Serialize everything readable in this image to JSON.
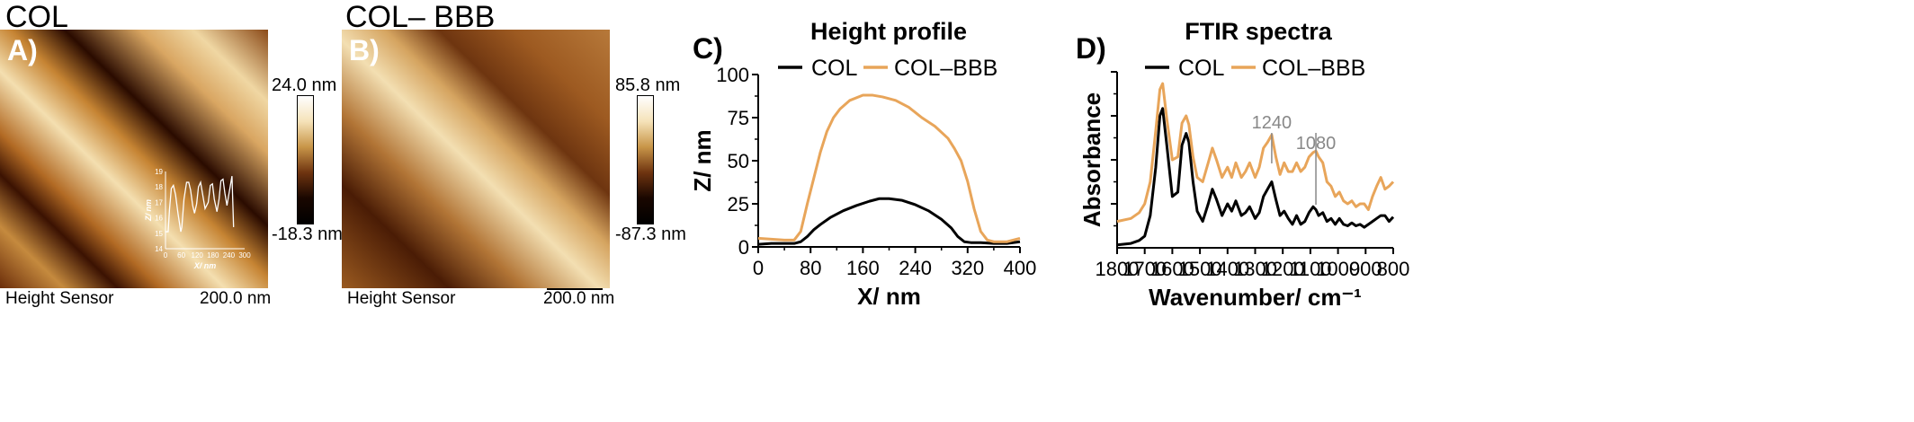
{
  "panels": {
    "a": {
      "title": "COL",
      "letter": "A)",
      "footer_left": "Height Sensor",
      "footer_right": "200.0 nm",
      "colorbar_max": "24.0 nm",
      "colorbar_min": "-18.3 nm"
    },
    "b": {
      "title": "COL– BBB",
      "letter": "B)",
      "footer_left": "Height Sensor",
      "footer_right": "200.0 nm",
      "colorbar_max": "85.8 nm",
      "colorbar_min": "-87.3 nm"
    },
    "c": {
      "letter": "C)"
    },
    "d": {
      "letter": "D)"
    }
  },
  "colors": {
    "col": "#000000",
    "col_bbb": "#E8A55A",
    "annotation": "#888888",
    "inset": "#ffffff"
  },
  "chart_data": [
    {
      "type": "line",
      "title": "",
      "xlabel": "X/ nm",
      "ylabel": "Z/ nm",
      "xlim": [
        0,
        300
      ],
      "ylim": [
        14,
        19
      ],
      "xticks": [
        "0",
        "60",
        "120",
        "180",
        "240",
        "300"
      ],
      "yticks": [
        "14",
        "15",
        "16",
        "17",
        "18",
        "19"
      ],
      "series": [
        {
          "name": "",
          "x": [
            0,
            10,
            15,
            22,
            30,
            38,
            48,
            58,
            62,
            70,
            80,
            88,
            95,
            103,
            110,
            118,
            125,
            133,
            140,
            150,
            162,
            170,
            178,
            185,
            195,
            203,
            210,
            218,
            225,
            233,
            240,
            252,
            258
          ],
          "y": [
            15.1,
            15.1,
            16.5,
            17.9,
            18.1,
            17.5,
            16.2,
            15.1,
            15.4,
            17.2,
            18.3,
            18.3,
            17.8,
            16.8,
            16.3,
            16.9,
            18.0,
            18.3,
            17.6,
            16.6,
            17.0,
            18.1,
            18.2,
            17.2,
            16.4,
            17.2,
            18.4,
            18.5,
            17.6,
            16.8,
            17.5,
            18.7,
            15.4
          ]
        }
      ]
    },
    {
      "type": "line",
      "title": "Height profile",
      "xlabel": "X/ nm",
      "ylabel": "Z/ nm",
      "xlim": [
        0,
        400
      ],
      "ylim": [
        0,
        100
      ],
      "xticks": [
        "0",
        "80",
        "160",
        "240",
        "320",
        "400"
      ],
      "yticks": [
        "0",
        "25",
        "50",
        "75",
        "100"
      ],
      "legend": "top",
      "series": [
        {
          "name": "COL",
          "x": [
            0,
            20,
            40,
            55,
            65,
            75,
            85,
            95,
            110,
            130,
            150,
            170,
            185,
            200,
            220,
            240,
            260,
            280,
            295,
            305,
            315,
            325,
            340,
            360,
            380,
            400
          ],
          "y": [
            1.5,
            2,
            2,
            2,
            3,
            6,
            10,
            13,
            17,
            21,
            24,
            26.5,
            28,
            28,
            27,
            24.5,
            21,
            16,
            11,
            6,
            3,
            2.5,
            2.5,
            2,
            2,
            3
          ]
        },
        {
          "name": "COL–BBB",
          "x": [
            0,
            20,
            40,
            55,
            65,
            75,
            85,
            95,
            105,
            115,
            125,
            140,
            160,
            175,
            190,
            210,
            230,
            250,
            270,
            290,
            300,
            310,
            320,
            330,
            340,
            350,
            360,
            380,
            400
          ],
          "y": [
            5,
            4.5,
            4,
            4,
            9,
            25,
            40,
            55,
            67,
            75,
            80,
            85,
            88,
            88,
            87,
            85,
            81,
            75,
            70,
            63,
            57,
            50,
            38,
            22,
            9,
            4,
            3,
            3,
            5
          ]
        }
      ]
    },
    {
      "type": "line",
      "title": "FTIR spectra",
      "xlabel": "Wavenumber/ cm⁻¹",
      "ylabel": "Absorbance",
      "xlim": [
        1800,
        800
      ],
      "xticks": [
        "1800",
        "1700",
        "1600",
        "1500",
        "1400",
        "1300",
        "1200",
        "1100",
        "1000",
        "900",
        "800"
      ],
      "legend": "top",
      "annotations": [
        {
          "text": "1240",
          "x": 1240
        },
        {
          "text": "1080",
          "x": 1080
        }
      ],
      "series": [
        {
          "name": "COL",
          "x": [
            1800,
            1750,
            1720,
            1700,
            1680,
            1660,
            1645,
            1635,
            1620,
            1600,
            1580,
            1565,
            1550,
            1540,
            1525,
            1510,
            1490,
            1470,
            1455,
            1440,
            1420,
            1400,
            1385,
            1370,
            1350,
            1335,
            1320,
            1300,
            1285,
            1270,
            1255,
            1240,
            1225,
            1210,
            1195,
            1180,
            1165,
            1150,
            1135,
            1120,
            1105,
            1090,
            1080,
            1070,
            1055,
            1040,
            1025,
            1010,
            995,
            980,
            965,
            950,
            935,
            920,
            905,
            890,
            875,
            860,
            845,
            830,
            815,
            800
          ],
          "y": [
            0.02,
            0.03,
            0.05,
            0.08,
            0.22,
            0.55,
            0.9,
            0.95,
            0.7,
            0.35,
            0.38,
            0.7,
            0.78,
            0.72,
            0.45,
            0.25,
            0.18,
            0.3,
            0.4,
            0.33,
            0.22,
            0.3,
            0.25,
            0.32,
            0.22,
            0.24,
            0.28,
            0.2,
            0.24,
            0.35,
            0.4,
            0.45,
            0.33,
            0.22,
            0.25,
            0.2,
            0.16,
            0.22,
            0.16,
            0.18,
            0.24,
            0.28,
            0.26,
            0.22,
            0.24,
            0.18,
            0.2,
            0.16,
            0.2,
            0.16,
            0.15,
            0.17,
            0.15,
            0.16,
            0.14,
            0.16,
            0.18,
            0.2,
            0.22,
            0.22,
            0.18,
            0.21
          ]
        },
        {
          "name": "COL–BBB",
          "x": [
            1800,
            1750,
            1720,
            1700,
            1680,
            1660,
            1645,
            1635,
            1620,
            1600,
            1580,
            1565,
            1550,
            1540,
            1525,
            1510,
            1490,
            1470,
            1455,
            1440,
            1420,
            1400,
            1385,
            1370,
            1350,
            1335,
            1320,
            1300,
            1285,
            1270,
            1255,
            1240,
            1225,
            1210,
            1195,
            1180,
            1165,
            1150,
            1135,
            1120,
            1105,
            1090,
            1080,
            1070,
            1055,
            1040,
            1025,
            1010,
            995,
            980,
            965,
            950,
            935,
            920,
            905,
            890,
            875,
            860,
            845,
            830,
            815,
            800
          ],
          "y": [
            0.18,
            0.2,
            0.24,
            0.3,
            0.45,
            0.8,
            1.08,
            1.12,
            0.88,
            0.6,
            0.62,
            0.85,
            0.9,
            0.84,
            0.62,
            0.48,
            0.45,
            0.58,
            0.68,
            0.6,
            0.48,
            0.55,
            0.48,
            0.58,
            0.48,
            0.52,
            0.58,
            0.48,
            0.55,
            0.68,
            0.72,
            0.77,
            0.62,
            0.5,
            0.58,
            0.52,
            0.52,
            0.58,
            0.52,
            0.55,
            0.62,
            0.65,
            0.66,
            0.62,
            0.58,
            0.45,
            0.42,
            0.35,
            0.38,
            0.32,
            0.3,
            0.32,
            0.28,
            0.3,
            0.3,
            0.26,
            0.35,
            0.42,
            0.48,
            0.4,
            0.42,
            0.45
          ]
        }
      ]
    }
  ]
}
